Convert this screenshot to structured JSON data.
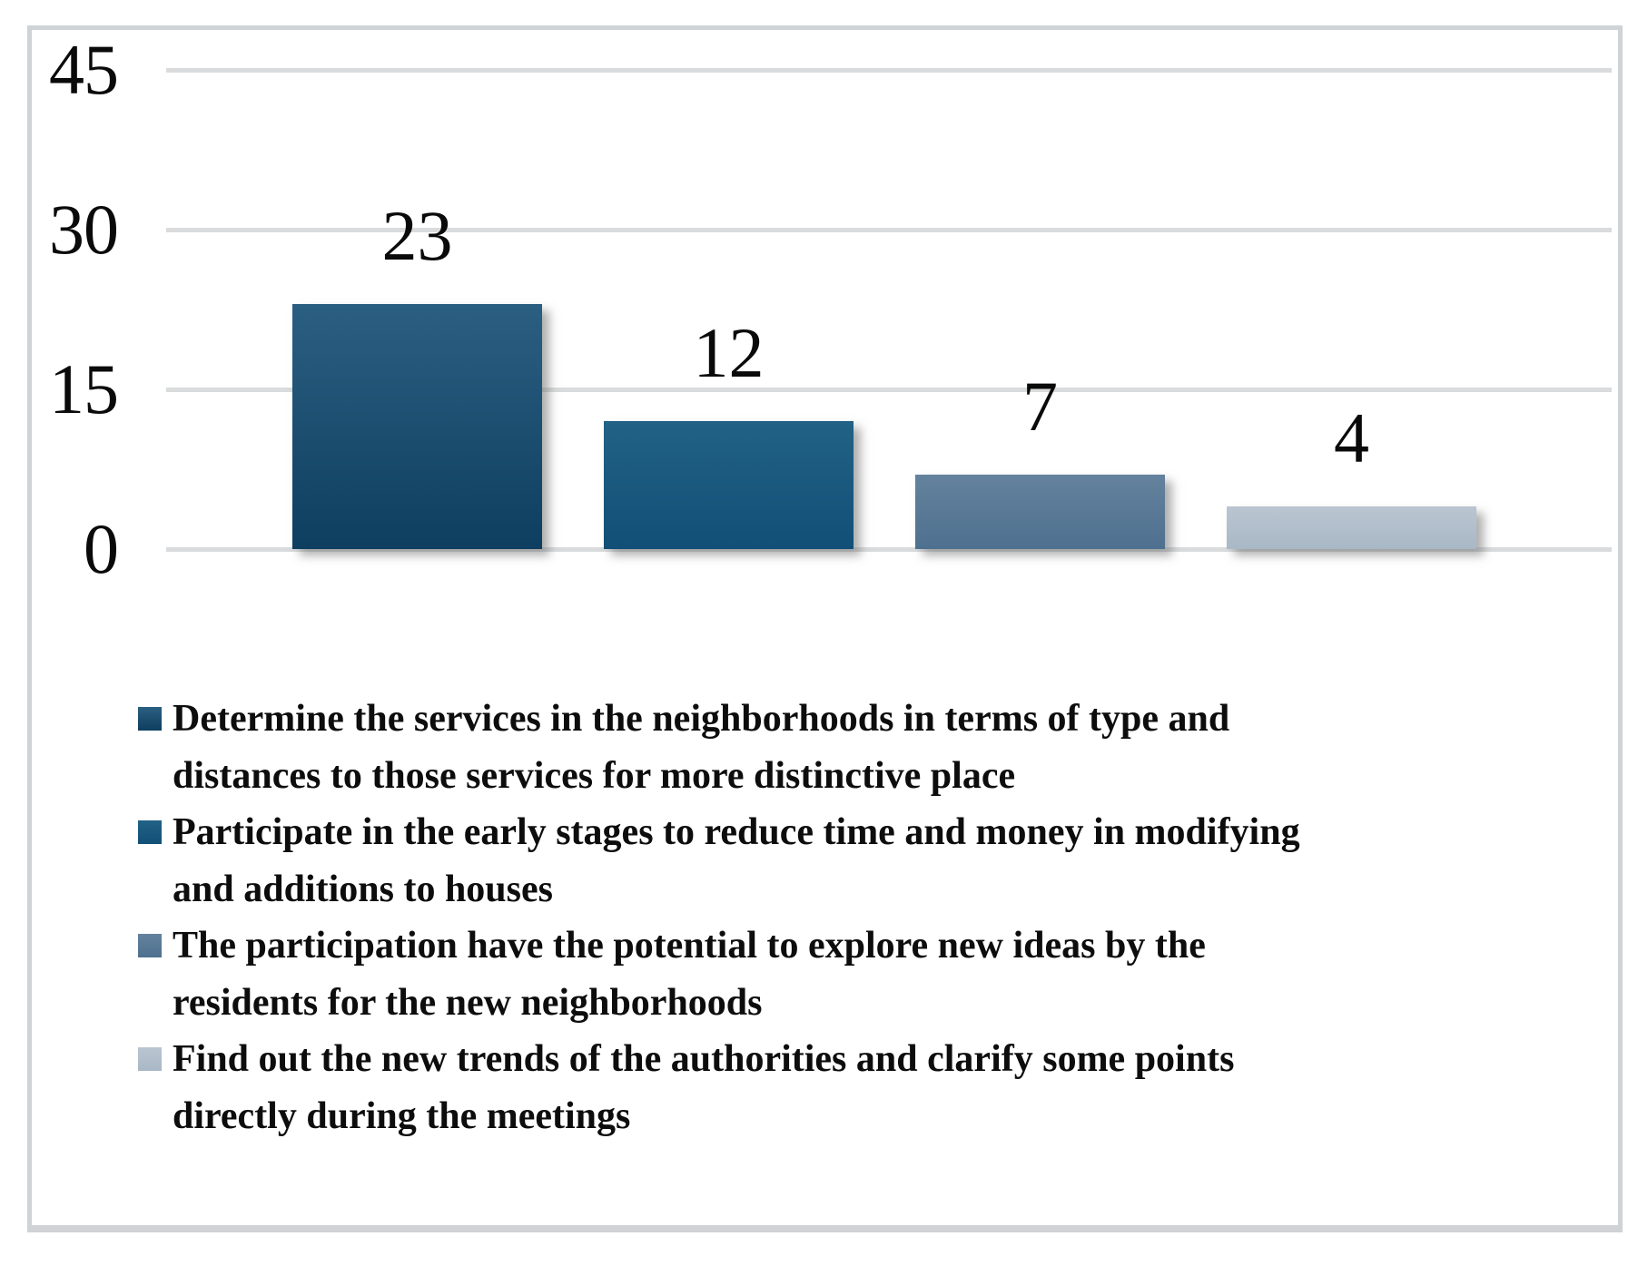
{
  "chart_data": {
    "type": "bar",
    "title": "",
    "xlabel": "",
    "ylabel": "",
    "categories": [
      "Determine the services in the neighborhoods in terms of type and distances to those services for more distinctive place",
      "Participate in the early stages to reduce time and money in modifying and additions to houses",
      "The participation have the potential to explore new ideas by the residents for the new neighborhoods",
      "Find out the new trends of the authorities and clarify some points directly during the meetings"
    ],
    "values": [
      23,
      12,
      7,
      4
    ],
    "value_labels": [
      "23",
      "12",
      "7",
      "4"
    ],
    "y_ticks": [
      "45",
      "30",
      "15",
      "0"
    ],
    "y_tick_values": [
      45,
      30,
      15,
      0
    ],
    "ylim": [
      0,
      45
    ],
    "grid": true,
    "legend_position": "bottom",
    "gridline_color": "#d9dbdc",
    "bar_colors": [
      {
        "top": "#2b5f81",
        "bottom": "#0e3e60"
      },
      {
        "top": "#226286",
        "bottom": "#124f77"
      },
      {
        "top": "#64829d",
        "bottom": "#4e708f"
      },
      {
        "top": "#bac5d1",
        "bottom": "#a9b8c6"
      }
    ],
    "legend_items": [
      {
        "lines": [
          "Determine the services in the neighborhoods in terms of type and",
          "distances to those services for more distinctive place"
        ]
      },
      {
        "lines": [
          "Participate in the early stages to reduce time and money in modifying",
          "and additions to houses"
        ]
      },
      {
        "lines": [
          "The participation have the potential to explore new ideas by the",
          "residents for the new neighborhoods"
        ]
      },
      {
        "lines": [
          "Find out the new trends of the authorities and clarify some points",
          "directly during the meetings"
        ]
      }
    ]
  }
}
